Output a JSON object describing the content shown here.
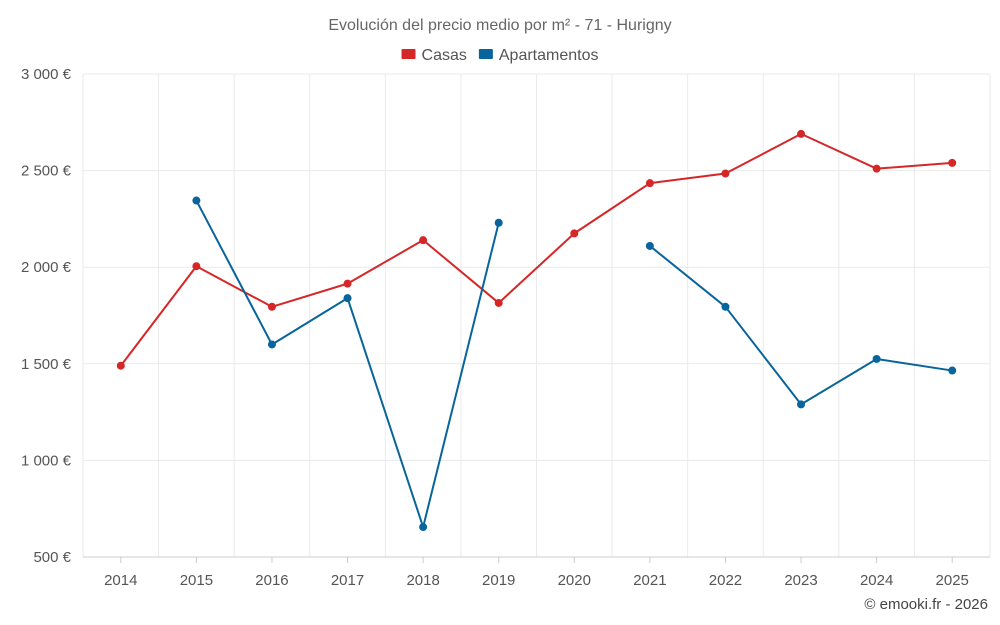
{
  "chart_data": {
    "type": "line",
    "title": "Evolución del precio medio por m² - 71 - Hurigny",
    "categories": [
      "2014",
      "2015",
      "2016",
      "2017",
      "2018",
      "2019",
      "2020",
      "2021",
      "2022",
      "2023",
      "2024",
      "2025"
    ],
    "series": [
      {
        "name": "Casas",
        "color": "#d62728",
        "values": [
          1490,
          2005,
          1795,
          1915,
          2140,
          1815,
          2175,
          2435,
          2485,
          2690,
          2510,
          2540
        ]
      },
      {
        "name": "Apartamentos",
        "color": "#08649c",
        "values": [
          null,
          2345,
          1600,
          1840,
          655,
          2230,
          null,
          2110,
          1795,
          1290,
          1525,
          1465
        ]
      }
    ],
    "ylim": [
      500,
      3000
    ],
    "yticks": [
      500,
      1000,
      1500,
      2000,
      2500,
      3000
    ],
    "ytick_labels": [
      "500 €",
      "1 000 €",
      "1 500 €",
      "2 000 €",
      "2 500 €",
      "3 000 €"
    ],
    "xlabel": "",
    "ylabel": "",
    "grid": true,
    "legend": "top-center"
  },
  "credit": "© emooki.fr - 2026"
}
